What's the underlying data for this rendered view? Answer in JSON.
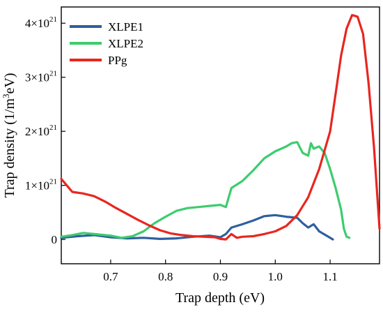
{
  "chart_data": {
    "type": "line",
    "xlabel": "Trap depth (eV)",
    "ylabel": "Trap density (1/m³eV)",
    "ylabel_parts": {
      "base": "Trap density (1/m",
      "sup": "3",
      "tail": "eV)"
    },
    "xlim": [
      0.61,
      1.19
    ],
    "ylim": [
      -0.45,
      4.3
    ],
    "x_ticks": [
      0.7,
      0.8,
      0.9,
      1.0,
      1.1
    ],
    "x_tick_labels": [
      "0.7",
      "0.8",
      "0.9",
      "1.0",
      "1.1"
    ],
    "y_ticks": [
      {
        "value": 0,
        "base": "0",
        "sup": ""
      },
      {
        "value": 1,
        "base": "1×10",
        "sup": "21"
      },
      {
        "value": 2,
        "base": "2×10",
        "sup": "21"
      },
      {
        "value": 3,
        "base": "3×10",
        "sup": "21"
      },
      {
        "value": 4,
        "base": "4×10",
        "sup": "21"
      }
    ],
    "y_unit_multiplier": "1e21",
    "grid": false,
    "legend_position": "top-left",
    "series": [
      {
        "name": "XLPE1",
        "color": "#2f5f9e",
        "points": [
          [
            0.61,
            0.03
          ],
          [
            0.64,
            0.06
          ],
          [
            0.67,
            0.08
          ],
          [
            0.7,
            0.04
          ],
          [
            0.73,
            0.02
          ],
          [
            0.76,
            0.03
          ],
          [
            0.79,
            0.01
          ],
          [
            0.82,
            0.02
          ],
          [
            0.85,
            0.05
          ],
          [
            0.88,
            0.07
          ],
          [
            0.9,
            0.04
          ],
          [
            0.91,
            0.1
          ],
          [
            0.92,
            0.22
          ],
          [
            0.94,
            0.28
          ],
          [
            0.96,
            0.35
          ],
          [
            0.98,
            0.43
          ],
          [
            1.0,
            0.45
          ],
          [
            1.02,
            0.42
          ],
          [
            1.04,
            0.4
          ],
          [
            1.05,
            0.3
          ],
          [
            1.06,
            0.22
          ],
          [
            1.07,
            0.28
          ],
          [
            1.08,
            0.15
          ],
          [
            1.1,
            0.03
          ],
          [
            1.105,
            0.0
          ]
        ]
      },
      {
        "name": "XLPE2",
        "color": "#3dcc6e",
        "points": [
          [
            0.61,
            0.05
          ],
          [
            0.63,
            0.08
          ],
          [
            0.65,
            0.12
          ],
          [
            0.67,
            0.1
          ],
          [
            0.7,
            0.07
          ],
          [
            0.72,
            0.03
          ],
          [
            0.74,
            0.06
          ],
          [
            0.76,
            0.15
          ],
          [
            0.78,
            0.3
          ],
          [
            0.8,
            0.42
          ],
          [
            0.82,
            0.53
          ],
          [
            0.84,
            0.58
          ],
          [
            0.86,
            0.6
          ],
          [
            0.88,
            0.62
          ],
          [
            0.9,
            0.64
          ],
          [
            0.91,
            0.6
          ],
          [
            0.92,
            0.95
          ],
          [
            0.94,
            1.08
          ],
          [
            0.96,
            1.28
          ],
          [
            0.98,
            1.5
          ],
          [
            1.0,
            1.63
          ],
          [
            1.02,
            1.72
          ],
          [
            1.03,
            1.78
          ],
          [
            1.04,
            1.8
          ],
          [
            1.05,
            1.6
          ],
          [
            1.06,
            1.55
          ],
          [
            1.065,
            1.78
          ],
          [
            1.07,
            1.68
          ],
          [
            1.08,
            1.72
          ],
          [
            1.09,
            1.6
          ],
          [
            1.1,
            1.3
          ],
          [
            1.11,
            0.95
          ],
          [
            1.12,
            0.55
          ],
          [
            1.125,
            0.2
          ],
          [
            1.13,
            0.05
          ],
          [
            1.135,
            0.03
          ]
        ]
      },
      {
        "name": "PPg",
        "color": "#e8261f",
        "points": [
          [
            0.61,
            1.12
          ],
          [
            0.62,
            1.0
          ],
          [
            0.63,
            0.88
          ],
          [
            0.65,
            0.85
          ],
          [
            0.67,
            0.8
          ],
          [
            0.69,
            0.7
          ],
          [
            0.71,
            0.58
          ],
          [
            0.73,
            0.47
          ],
          [
            0.75,
            0.36
          ],
          [
            0.77,
            0.26
          ],
          [
            0.79,
            0.17
          ],
          [
            0.81,
            0.11
          ],
          [
            0.83,
            0.08
          ],
          [
            0.85,
            0.06
          ],
          [
            0.87,
            0.05
          ],
          [
            0.89,
            0.04
          ],
          [
            0.9,
            0.01
          ],
          [
            0.91,
            0.0
          ],
          [
            0.92,
            0.1
          ],
          [
            0.93,
            0.03
          ],
          [
            0.94,
            0.05
          ],
          [
            0.96,
            0.06
          ],
          [
            0.98,
            0.1
          ],
          [
            1.0,
            0.15
          ],
          [
            1.02,
            0.25
          ],
          [
            1.04,
            0.45
          ],
          [
            1.06,
            0.78
          ],
          [
            1.08,
            1.3
          ],
          [
            1.1,
            2.0
          ],
          [
            1.11,
            2.7
          ],
          [
            1.12,
            3.4
          ],
          [
            1.13,
            3.9
          ],
          [
            1.14,
            4.15
          ],
          [
            1.15,
            4.12
          ],
          [
            1.16,
            3.8
          ],
          [
            1.17,
            2.9
          ],
          [
            1.18,
            1.7
          ],
          [
            1.19,
            0.2
          ]
        ]
      }
    ]
  }
}
